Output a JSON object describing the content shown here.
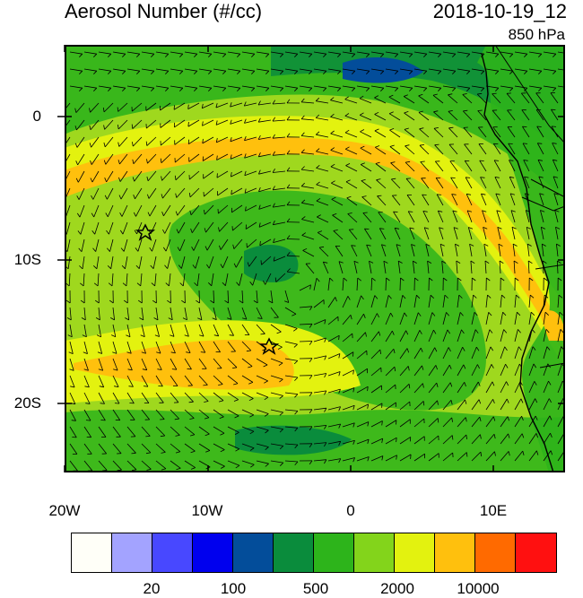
{
  "title": "Aerosol Number (#/cc)",
  "datetime": "2018-10-19_12",
  "level": "850 hPa",
  "lat_labels": [
    "0",
    "10S",
    "20S"
  ],
  "lon_labels": [
    "20W",
    "10W",
    "0",
    "10E"
  ],
  "colorbar": {
    "colors": [
      "#fffff8",
      "#a3a3ff",
      "#4848ff",
      "#0000ee",
      "#034d9a",
      "#0a8c3c",
      "#2db41b",
      "#83d41b",
      "#e3f20f",
      "#ffc00d",
      "#ff6a00",
      "#ff1010"
    ],
    "labels": [
      "20",
      "100",
      "500",
      "2000",
      "10000"
    ]
  },
  "field_colors": {
    "base": "#9fd81e",
    "low": "#2db41b",
    "mid_low": "#5fc41b",
    "high": "#e3f20f",
    "very_high": "#ffc00d",
    "deep": "#0a8c3c",
    "deepest": "#034d9a"
  },
  "markers": [
    "star-marker",
    "star-marker"
  ]
}
